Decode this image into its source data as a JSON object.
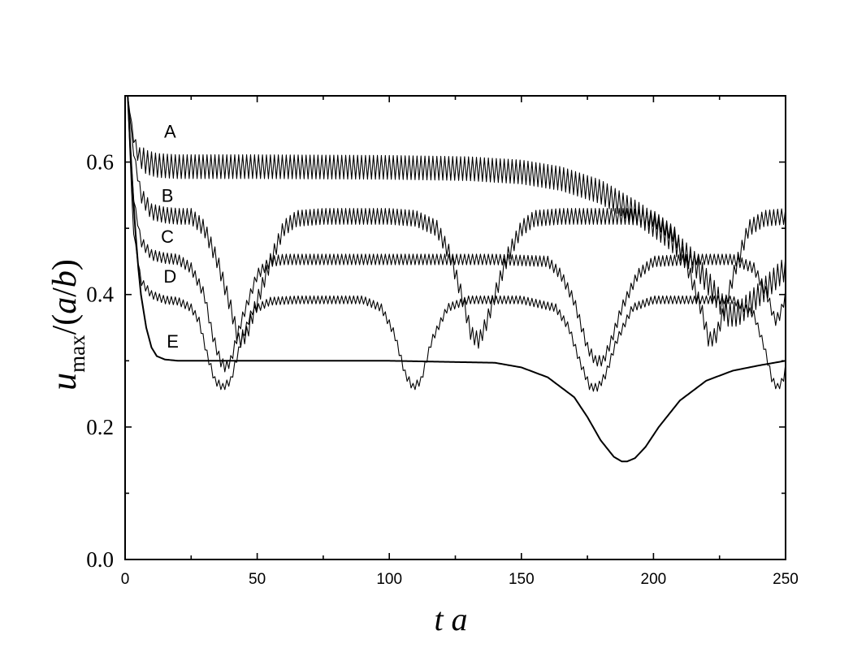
{
  "chart_data": {
    "type": "line",
    "title": "",
    "xlabel": "t a",
    "ylabel": {
      "main": "u",
      "subscript": "max",
      "suffix_parts": [
        "/(",
        "a",
        "/",
        "b",
        ")"
      ]
    },
    "xlim": [
      0,
      250
    ],
    "ylim": [
      0,
      0.7
    ],
    "x_ticks": [
      0,
      50,
      100,
      150,
      200,
      250
    ],
    "x_tick_labels": [
      "0",
      "50",
      "100",
      "150",
      "200",
      "250"
    ],
    "y_ticks": [
      0.0,
      0.2,
      0.4,
      0.6
    ],
    "y_tick_labels": [
      "0.0",
      "0.2",
      "0.4",
      "0.6"
    ],
    "grid": false,
    "legend": "none",
    "series": [
      {
        "name": "A",
        "color": "#000000",
        "oscillation_amplitude": 0.018,
        "oscillation_period": 1.5,
        "x": [
          1,
          3,
          5,
          8,
          12,
          20,
          50,
          100,
          130,
          150,
          165,
          180,
          195,
          205,
          215,
          222,
          228,
          232,
          240,
          250
        ],
        "y": [
          0.7,
          0.64,
          0.61,
          0.6,
          0.595,
          0.593,
          0.593,
          0.592,
          0.59,
          0.585,
          0.575,
          0.555,
          0.52,
          0.49,
          0.45,
          0.41,
          0.37,
          0.37,
          0.4,
          0.44
        ]
      },
      {
        "name": "B",
        "color": "#000000",
        "oscillation_amplitude": 0.012,
        "oscillation_period": 1.5,
        "x": [
          1,
          3,
          6,
          10,
          15,
          20,
          25,
          30,
          35,
          40,
          43,
          46,
          50,
          55,
          60,
          65,
          75,
          100,
          110,
          118,
          123,
          128,
          131,
          134,
          137,
          140,
          145,
          150,
          155,
          165,
          190,
          200,
          208,
          213,
          218,
          221,
          224,
          227,
          231,
          236,
          242,
          250
        ],
        "y": [
          0.7,
          0.62,
          0.55,
          0.525,
          0.52,
          0.518,
          0.518,
          0.5,
          0.45,
          0.38,
          0.33,
          0.34,
          0.39,
          0.45,
          0.5,
          0.515,
          0.518,
          0.518,
          0.515,
          0.5,
          0.46,
          0.39,
          0.34,
          0.33,
          0.36,
          0.4,
          0.46,
          0.5,
          0.515,
          0.518,
          0.518,
          0.515,
          0.49,
          0.44,
          0.38,
          0.33,
          0.34,
          0.38,
          0.44,
          0.5,
          0.515,
          0.518
        ]
      },
      {
        "name": "C",
        "color": "#000000",
        "oscillation_amplitude": 0.008,
        "oscillation_period": 1.5,
        "x": [
          1,
          3,
          6,
          10,
          15,
          20,
          25,
          30,
          33,
          36,
          38,
          40,
          44,
          50,
          55,
          60,
          80,
          100,
          110,
          120,
          130,
          140,
          160,
          165,
          170,
          175,
          178,
          181,
          184,
          188,
          194,
          200,
          215,
          230,
          238,
          243,
          246,
          248,
          250
        ],
        "y": [
          0.7,
          0.55,
          0.48,
          0.46,
          0.455,
          0.453,
          0.44,
          0.4,
          0.34,
          0.3,
          0.29,
          0.3,
          0.36,
          0.43,
          0.45,
          0.453,
          0.453,
          0.453,
          0.453,
          0.453,
          0.453,
          0.453,
          0.45,
          0.43,
          0.39,
          0.32,
          0.3,
          0.3,
          0.33,
          0.38,
          0.43,
          0.45,
          0.453,
          0.453,
          0.44,
          0.4,
          0.36,
          0.37,
          0.4
        ]
      },
      {
        "name": "D",
        "color": "#000000",
        "oscillation_amplitude": 0.006,
        "oscillation_period": 1.5,
        "x": [
          1,
          3,
          6,
          10,
          15,
          20,
          25,
          28,
          31,
          34,
          37,
          40,
          44,
          48,
          55,
          65,
          90,
          97,
          102,
          106,
          109,
          112,
          116,
          122,
          130,
          150,
          163,
          168,
          172,
          176,
          179,
          182,
          186,
          192,
          200,
          230,
          238,
          242,
          245,
          247,
          249,
          250
        ],
        "y": [
          0.7,
          0.5,
          0.42,
          0.4,
          0.392,
          0.39,
          0.38,
          0.36,
          0.31,
          0.27,
          0.26,
          0.27,
          0.33,
          0.375,
          0.39,
          0.392,
          0.392,
          0.38,
          0.34,
          0.28,
          0.26,
          0.27,
          0.33,
          0.38,
          0.392,
          0.392,
          0.38,
          0.35,
          0.3,
          0.26,
          0.26,
          0.28,
          0.33,
          0.38,
          0.392,
          0.392,
          0.37,
          0.32,
          0.27,
          0.26,
          0.27,
          0.29
        ]
      },
      {
        "name": "E",
        "color": "#000000",
        "oscillation_amplitude": 0.0,
        "oscillation_period": 1.5,
        "x": [
          1,
          2,
          3,
          4,
          5,
          6,
          8,
          10,
          12,
          15,
          20,
          40,
          100,
          140,
          150,
          160,
          170,
          175,
          180,
          185,
          188,
          190,
          193,
          197,
          202,
          210,
          220,
          230,
          240,
          250
        ],
        "y": [
          0.7,
          0.62,
          0.55,
          0.49,
          0.44,
          0.4,
          0.35,
          0.32,
          0.307,
          0.302,
          0.3,
          0.3,
          0.3,
          0.297,
          0.29,
          0.275,
          0.245,
          0.215,
          0.18,
          0.155,
          0.148,
          0.148,
          0.153,
          0.17,
          0.2,
          0.24,
          0.27,
          0.285,
          0.293,
          0.3
        ]
      }
    ],
    "curve_labels": [
      {
        "text": "A",
        "x": 17,
        "y": 0.637
      },
      {
        "text": "B",
        "x": 16,
        "y": 0.54
      },
      {
        "text": "C",
        "x": 16,
        "y": 0.478
      },
      {
        "text": "D",
        "x": 17,
        "y": 0.418
      },
      {
        "text": "E",
        "x": 18,
        "y": 0.32
      }
    ]
  }
}
